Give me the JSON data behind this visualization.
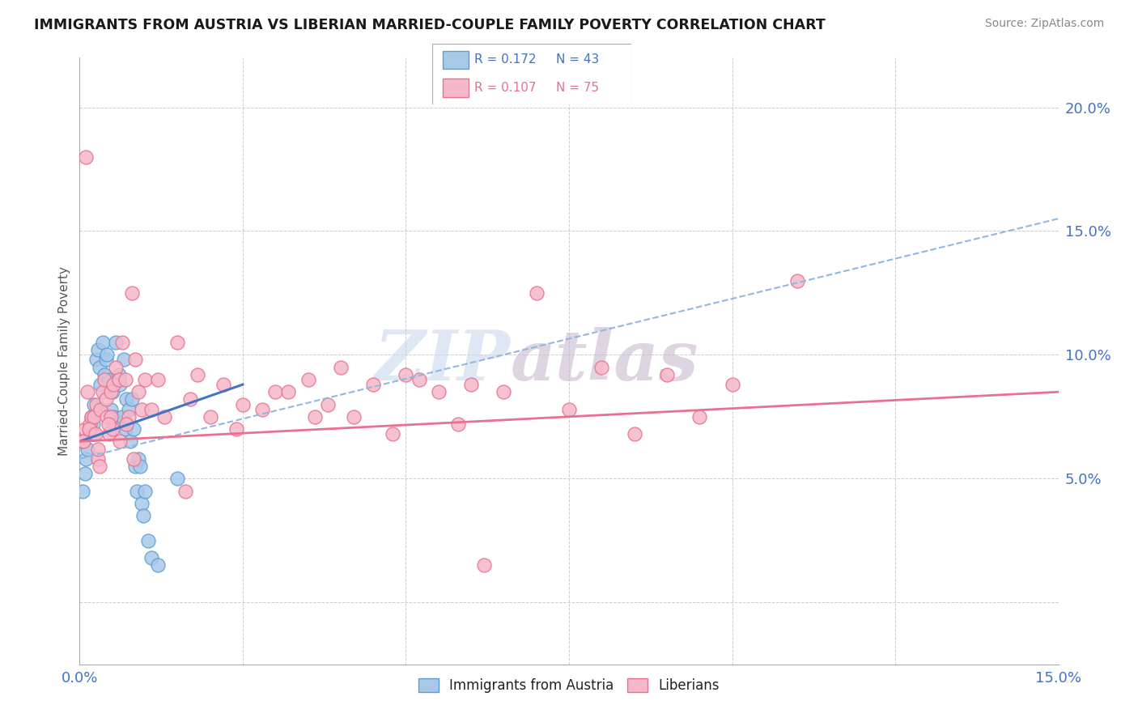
{
  "title": "IMMIGRANTS FROM AUSTRIA VS LIBERIAN MARRIED-COUPLE FAMILY POVERTY CORRELATION CHART",
  "source": "Source: ZipAtlas.com",
  "ylabel": "Married-Couple Family Poverty",
  "xmin": 0.0,
  "xmax": 15.0,
  "ymin": -2.5,
  "ymax": 22.0,
  "color_austria": "#a8c8e8",
  "color_austria_edge": "#5a9fd4",
  "color_liberia": "#f5b8c8",
  "color_liberia_edge": "#e87090",
  "color_austria_line": "#4472c4",
  "color_liberia_line": "#e87090",
  "color_austria_dash": "#90b8e0",
  "watermark_zip": "ZIP",
  "watermark_atlas": "atlas",
  "austria_x": [
    0.05,
    0.08,
    0.1,
    0.12,
    0.15,
    0.18,
    0.2,
    0.22,
    0.25,
    0.28,
    0.3,
    0.32,
    0.35,
    0.38,
    0.4,
    0.42,
    0.45,
    0.48,
    0.5,
    0.52,
    0.55,
    0.58,
    0.6,
    0.62,
    0.65,
    0.68,
    0.7,
    0.72,
    0.75,
    0.78,
    0.8,
    0.82,
    0.85,
    0.88,
    0.9,
    0.92,
    0.95,
    0.98,
    1.0,
    1.05,
    1.1,
    1.2,
    1.5
  ],
  "austria_y": [
    4.5,
    5.2,
    5.8,
    6.2,
    7.0,
    7.5,
    7.2,
    8.0,
    9.8,
    10.2,
    9.5,
    8.8,
    10.5,
    9.2,
    9.8,
    10.0,
    9.0,
    7.8,
    8.5,
    7.5,
    10.5,
    7.2,
    9.2,
    8.8,
    7.5,
    9.8,
    7.0,
    8.2,
    7.8,
    6.5,
    8.2,
    7.0,
    5.5,
    4.5,
    5.8,
    5.5,
    4.0,
    3.5,
    4.5,
    2.5,
    1.8,
    1.5,
    5.0
  ],
  "liberia_x": [
    0.05,
    0.08,
    0.1,
    0.12,
    0.15,
    0.18,
    0.2,
    0.22,
    0.25,
    0.28,
    0.3,
    0.32,
    0.35,
    0.38,
    0.4,
    0.42,
    0.45,
    0.48,
    0.5,
    0.52,
    0.55,
    0.6,
    0.65,
    0.7,
    0.75,
    0.8,
    0.85,
    0.9,
    0.95,
    1.0,
    1.1,
    1.2,
    1.5,
    1.8,
    2.0,
    2.5,
    3.0,
    3.5,
    4.0,
    4.5,
    5.0,
    5.5,
    6.0,
    7.0,
    8.0,
    9.0,
    10.0,
    11.0,
    0.28,
    0.48,
    0.72,
    1.3,
    1.7,
    2.2,
    2.8,
    3.2,
    3.8,
    4.2,
    4.8,
    5.2,
    5.8,
    6.5,
    7.5,
    8.5,
    9.5,
    0.06,
    0.14,
    0.24,
    0.44,
    0.62,
    0.82,
    1.62,
    2.4,
    3.6,
    6.2
  ],
  "liberia_y": [
    6.5,
    7.0,
    18.0,
    8.5,
    7.2,
    7.5,
    6.8,
    7.5,
    8.0,
    5.8,
    5.5,
    7.8,
    8.5,
    9.0,
    8.2,
    7.5,
    6.8,
    8.5,
    7.0,
    8.8,
    9.5,
    9.0,
    10.5,
    9.0,
    7.5,
    12.5,
    9.8,
    8.5,
    7.8,
    9.0,
    7.8,
    9.0,
    10.5,
    9.2,
    7.5,
    8.0,
    8.5,
    9.0,
    9.5,
    8.8,
    9.2,
    8.5,
    8.8,
    12.5,
    9.5,
    9.2,
    8.8,
    13.0,
    6.2,
    7.5,
    7.2,
    7.5,
    8.2,
    8.8,
    7.8,
    8.5,
    8.0,
    7.5,
    6.8,
    9.0,
    7.2,
    8.5,
    7.8,
    6.8,
    7.5,
    6.5,
    7.0,
    6.8,
    7.2,
    6.5,
    5.8,
    4.5,
    7.0,
    7.5,
    1.5
  ],
  "austria_line_x0": 0.0,
  "austria_line_y0": 6.5,
  "austria_line_x1": 2.5,
  "austria_line_y1": 8.8,
  "austria_dash_x0": 0.0,
  "austria_dash_y0": 5.8,
  "austria_dash_x1": 15.0,
  "austria_dash_y1": 15.5,
  "liberia_line_x0": 0.0,
  "liberia_line_y0": 6.5,
  "liberia_line_x1": 15.0,
  "liberia_line_y1": 8.5
}
